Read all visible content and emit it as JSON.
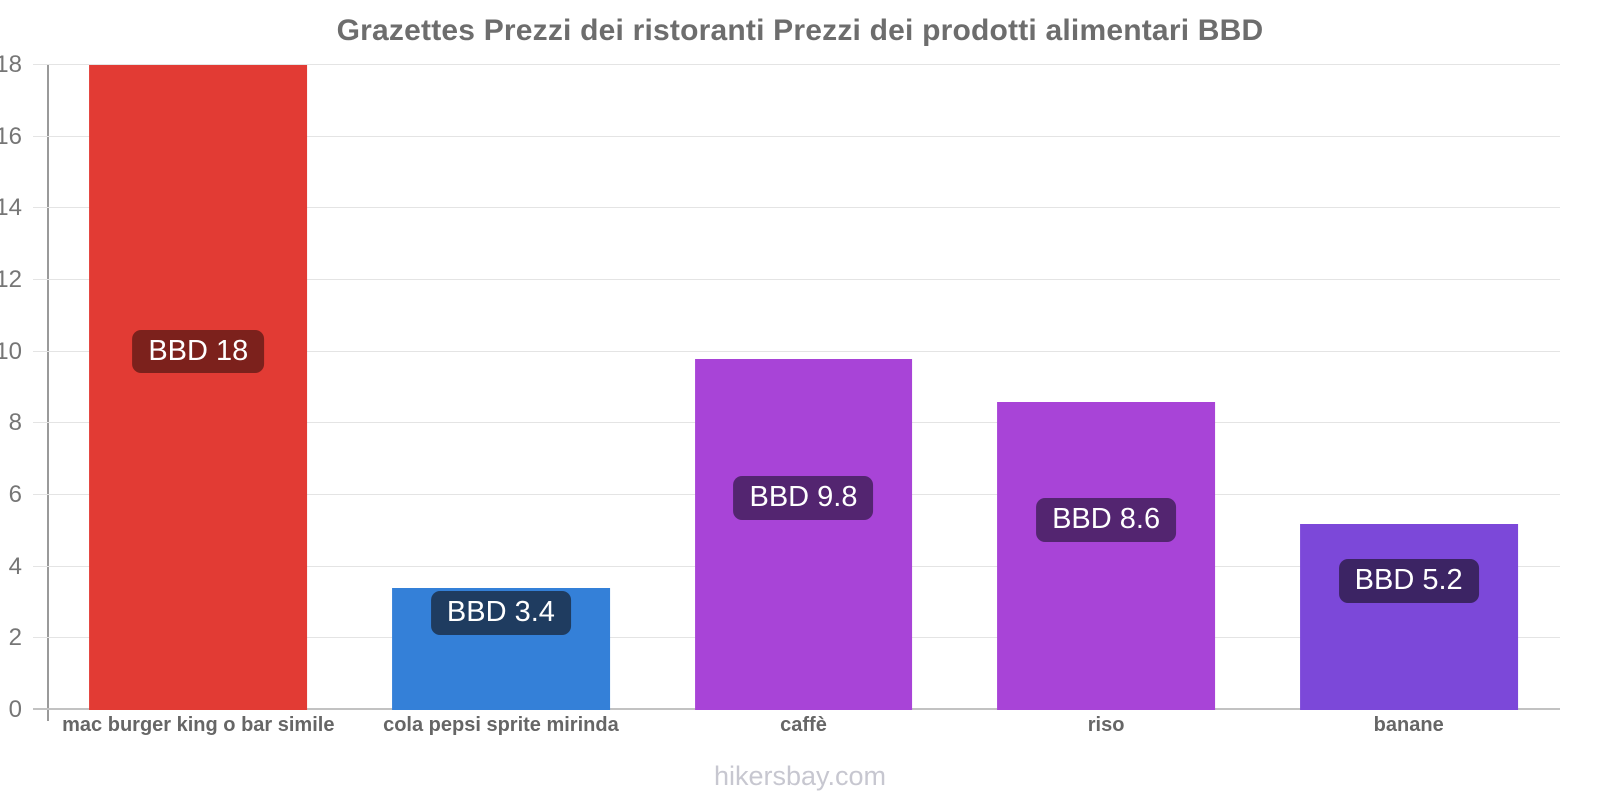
{
  "title": "Grazettes Prezzi dei ristoranti Prezzi dei prodotti alimentari BBD",
  "footer": "hikersbay.com",
  "chart_data": {
    "type": "bar",
    "title": "Grazettes Prezzi dei ristoranti Prezzi dei prodotti alimentari BBD",
    "currency": "BBD",
    "categories": [
      "mac burger king o bar simile",
      "cola pepsi sprite mirinda",
      "caffè",
      "riso",
      "banane"
    ],
    "values": [
      18,
      3.4,
      9.8,
      8.6,
      5.2
    ],
    "data_labels": [
      "BBD 18",
      "BBD 3.4",
      "BBD 9.8",
      "BBD 8.6",
      "BBD 5.2"
    ],
    "bar_colors": [
      "#e23b34",
      "#3480d8",
      "#a844d7",
      "#a844d7",
      "#7c48d9"
    ],
    "label_bg_colors": [
      "#7c211c",
      "#1f3c60",
      "#532570",
      "#532570",
      "#3c2464"
    ],
    "xlabel": "",
    "ylabel": "",
    "ylim": [
      0,
      18
    ],
    "yticks": [
      0,
      2,
      4,
      6,
      8,
      10,
      12,
      14,
      16,
      18
    ],
    "grid": true,
    "legend": false,
    "gridline_color": "#e4e4e4",
    "baseline_color": "#c2c2c2",
    "axis_line_color": "#9a9a9a",
    "tick_label_color": "#767676",
    "category_label_color": "#666666",
    "title_color": "#6d6d6d",
    "footer_color": "#c7c7d0"
  }
}
